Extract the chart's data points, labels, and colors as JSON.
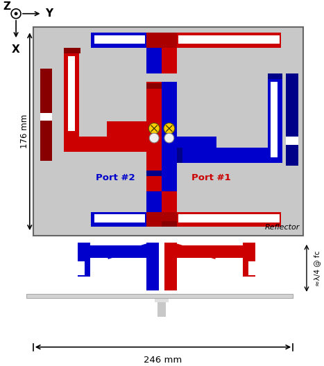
{
  "bg_color": "#c8c8c8",
  "white_bg": "#ffffff",
  "red": "#cc0000",
  "dark_red": "#880000",
  "blue": "#0000cc",
  "dark_blue": "#000088",
  "yellow": "#ffcc00",
  "gray": "#c8c8c8",
  "176mm_label": "176 mm",
  "246mm_label": "246 mm",
  "reflector_label": "Reflector",
  "port1_label": "Port #1",
  "port2_label": "Port #2",
  "lambda_label": "≈λ/4 @ fᴄ"
}
